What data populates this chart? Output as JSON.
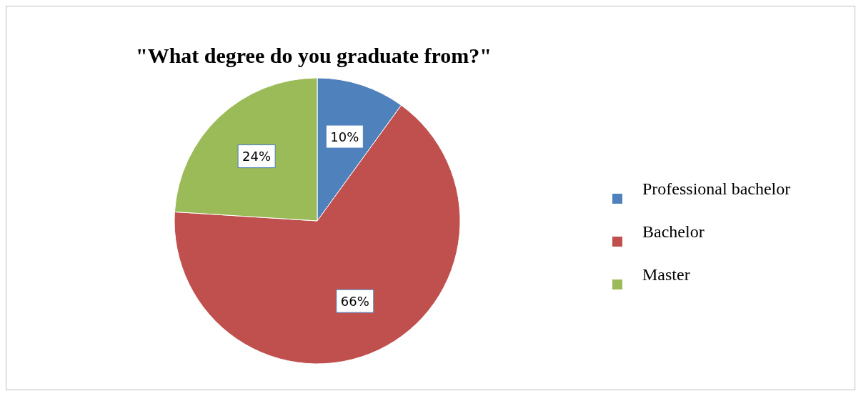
{
  "chart_data": {
    "type": "pie",
    "title": "\"What degree do you graduate from?\"",
    "categories": [
      "Professional bachelor",
      "Bachelor",
      "Master"
    ],
    "values": [
      10,
      66,
      24
    ],
    "value_labels": [
      "10%",
      "66%",
      "24%"
    ],
    "colors": [
      "#4f81bd",
      "#c0504d",
      "#9bbb59"
    ],
    "legend": "right"
  }
}
